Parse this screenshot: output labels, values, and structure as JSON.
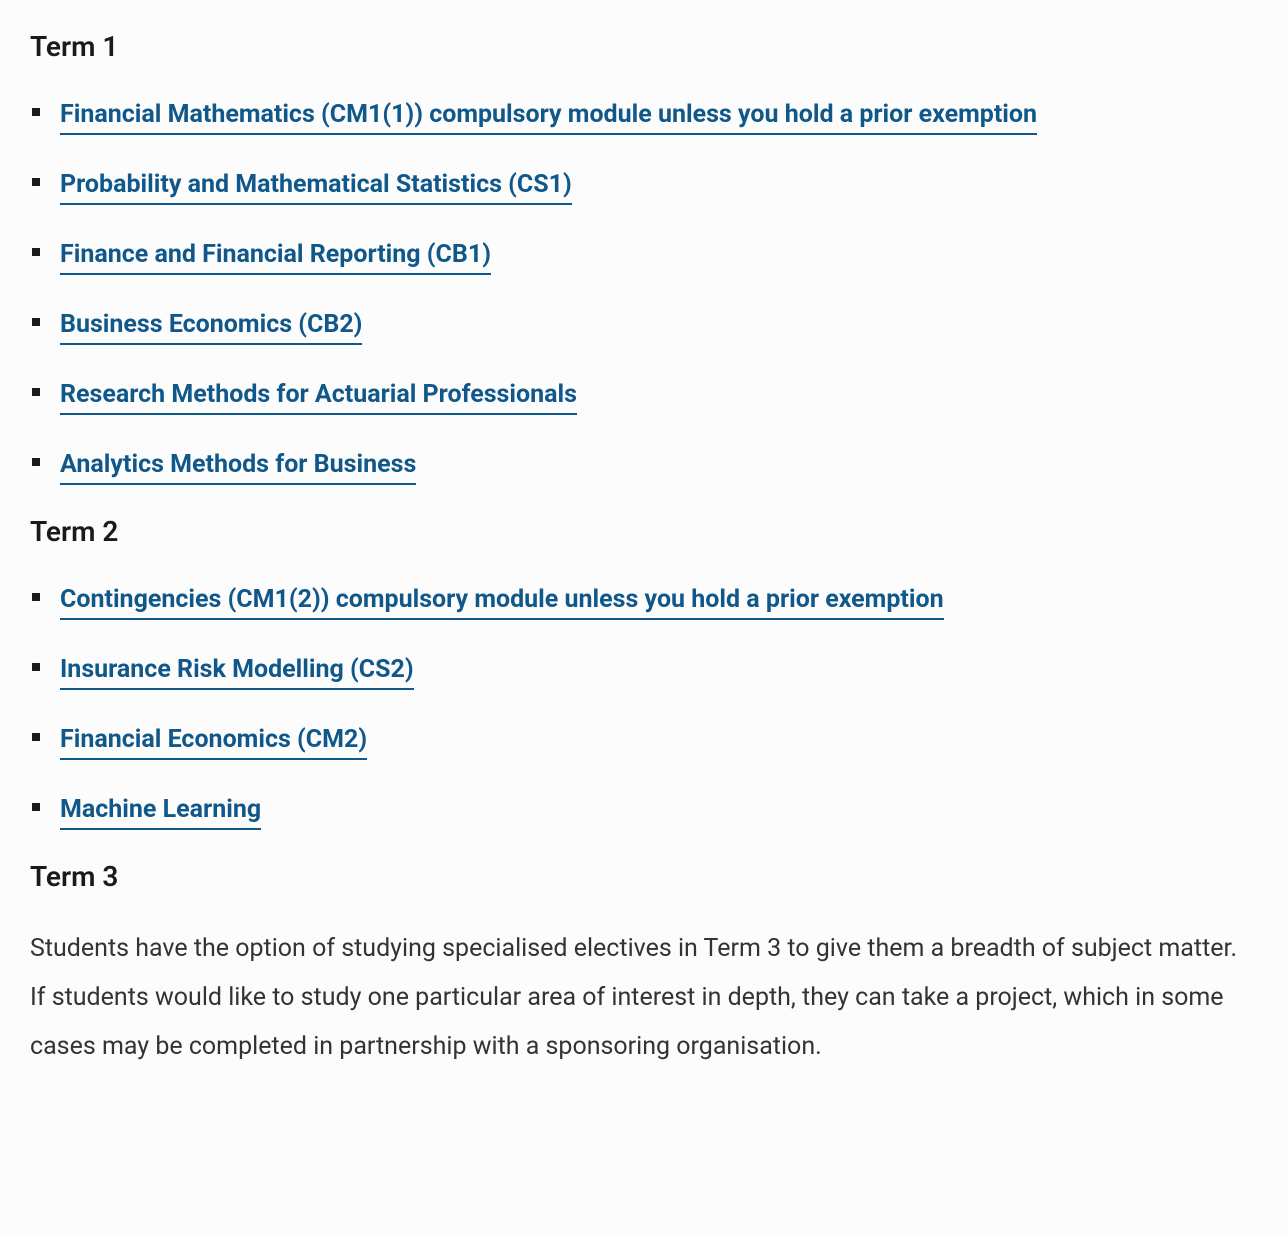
{
  "colors": {
    "link_color": "#10578a",
    "text_color": "#1a1a1a",
    "body_text_color": "#333333",
    "background_color": "#fcfcfd",
    "bullet_color": "#1a1a1a",
    "link_underline_color": "#10578a"
  },
  "typography": {
    "heading_fontsize": 28,
    "heading_fontweight": 600,
    "link_fontsize": 25,
    "link_fontweight": 700,
    "body_fontsize": 25,
    "body_fontweight": 400,
    "body_lineheight": 1.95
  },
  "terms": [
    {
      "heading": "Term 1",
      "modules": [
        "Financial Mathematics (CM1(1)) compulsory module unless you hold a prior exemption",
        "Probability and Mathematical Statistics (CS1)",
        "Finance and Financial Reporting (CB1)",
        "Business Economics (CB2)",
        "Research Methods for Actuarial Professionals",
        "Analytics Methods for Business"
      ]
    },
    {
      "heading": "Term 2",
      "modules": [
        "Contingencies (CM1(2)) compulsory module unless you hold a prior exemption",
        "Insurance Risk Modelling (CS2)",
        "Financial Economics (CM2)",
        "Machine Learning"
      ]
    },
    {
      "heading": "Term 3",
      "body": "Students have the option of studying specialised electives in Term 3 to give them a breadth of subject matter. If students would like to study one particular area of interest in depth, they can take a project, which in some cases may be completed in partnership with a sponsoring organisation."
    }
  ]
}
